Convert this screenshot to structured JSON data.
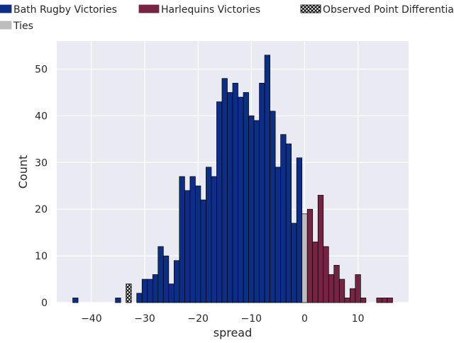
{
  "chart_data": {
    "type": "bar",
    "xlabel": "spread",
    "ylabel": "Count",
    "xlim": [
      -46.5,
      19.5
    ],
    "ylim": [
      0,
      56
    ],
    "xticks": [
      -40,
      -30,
      -20,
      -10,
      0,
      10
    ],
    "yticks": [
      0,
      10,
      20,
      30,
      40,
      50
    ],
    "xtick_labels": [
      "−40",
      "−30",
      "−20",
      "−10",
      "0",
      "10"
    ],
    "ytick_labels": [
      "0",
      "10",
      "20",
      "30",
      "40",
      "50"
    ],
    "grid": true,
    "legend_placement": "top",
    "legend": [
      {
        "label": "Bath Rugby Victories",
        "color": "#0d2e86",
        "kind": "patch"
      },
      {
        "label": "Harlequins Victories",
        "color": "#772343",
        "kind": "patch"
      },
      {
        "label": "Observed Point Differential",
        "color": "#000000",
        "kind": "hatched"
      },
      {
        "label": "Ties",
        "color": "#bdbdbd",
        "kind": "patch"
      }
    ],
    "series": [
      {
        "name": "Bath Rugby Victories",
        "color": "#0d2e86",
        "x": [
          -43,
          -35,
          -31,
          -30,
          -29,
          -28,
          -27,
          -26,
          -25,
          -24,
          -23,
          -22,
          -21,
          -20,
          -19,
          -18,
          -17,
          -16,
          -15,
          -14,
          -13,
          -12,
          -11,
          -10,
          -9,
          -8,
          -7,
          -6,
          -5,
          -4,
          -3,
          -2,
          -1
        ],
        "values": [
          1,
          1,
          2,
          5,
          5,
          6,
          12,
          10,
          4,
          9,
          27,
          24,
          27,
          25,
          22,
          29,
          27,
          43,
          48,
          45,
          47,
          44,
          45,
          40,
          39,
          47,
          53,
          41,
          29,
          36,
          34,
          17,
          31
        ]
      },
      {
        "name": "Ties",
        "color": "#bdbdbd",
        "x": [
          0
        ],
        "values": [
          19
        ]
      },
      {
        "name": "Harlequins Victories",
        "color": "#772343",
        "x": [
          1,
          2,
          3,
          4,
          5,
          6,
          7,
          8,
          9,
          10,
          11,
          14,
          15,
          16
        ],
        "values": [
          20,
          13,
          23,
          12,
          6,
          8,
          5,
          1,
          3,
          6,
          1,
          1,
          1,
          1
        ]
      },
      {
        "name": "Observed Point Differential",
        "color": "#000000",
        "x": [
          -33
        ],
        "values": [
          4
        ]
      }
    ]
  }
}
